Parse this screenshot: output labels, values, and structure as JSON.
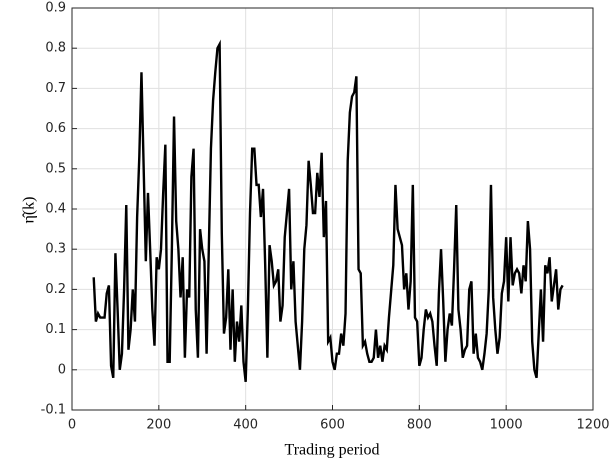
{
  "chart_data": {
    "type": "line",
    "xlabel": "Trading period",
    "ylabel": "η̂(k)",
    "xlim": [
      0,
      1200
    ],
    "xticks": [
      0,
      200,
      400,
      600,
      800,
      1000,
      1200
    ],
    "ylim": [
      -0.1,
      0.9
    ],
    "yticks": [
      -0.1,
      0,
      0.1,
      0.2,
      0.3,
      0.4,
      0.5,
      0.6,
      0.7,
      0.8,
      0.9
    ],
    "grid": true,
    "x": [
      50,
      55,
      60,
      65,
      75,
      80,
      85,
      90,
      95,
      100,
      105,
      110,
      115,
      120,
      125,
      130,
      135,
      140,
      145,
      150,
      155,
      160,
      170,
      175,
      180,
      185,
      190,
      195,
      200,
      205,
      210,
      215,
      220,
      225,
      230,
      235,
      240,
      245,
      250,
      255,
      260,
      265,
      270,
      275,
      280,
      285,
      290,
      295,
      300,
      305,
      310,
      320,
      325,
      330,
      335,
      340,
      345,
      350,
      355,
      360,
      365,
      370,
      375,
      380,
      385,
      390,
      395,
      400,
      405,
      410,
      415,
      420,
      425,
      430,
      435,
      440,
      445,
      450,
      455,
      460,
      465,
      470,
      475,
      480,
      485,
      490,
      495,
      500,
      505,
      510,
      515,
      520,
      525,
      530,
      535,
      540,
      545,
      550,
      555,
      560,
      565,
      570,
      575,
      580,
      585,
      590,
      595,
      600,
      605,
      610,
      615,
      620,
      625,
      630,
      635,
      640,
      645,
      650,
      655,
      660,
      665,
      670,
      675,
      680,
      685,
      690,
      695,
      700,
      705,
      710,
      715,
      720,
      725,
      730,
      740,
      745,
      750,
      755,
      760,
      765,
      770,
      775,
      780,
      785,
      790,
      795,
      800,
      805,
      810,
      815,
      820,
      825,
      830,
      835,
      840,
      845,
      850,
      855,
      860,
      865,
      870,
      875,
      880,
      885,
      890,
      895,
      900,
      905,
      910,
      915,
      920,
      925,
      930,
      935,
      940,
      945,
      950,
      955,
      960,
      965,
      970,
      975,
      980,
      985,
      990,
      995,
      1000,
      1005,
      1010,
      1015,
      1020,
      1025,
      1030,
      1035,
      1040,
      1045,
      1050,
      1055,
      1060,
      1065,
      1070,
      1075,
      1080,
      1085,
      1090,
      1095,
      1100,
      1105,
      1110,
      1115,
      1120,
      1125,
      1130
    ],
    "series": [
      {
        "color": "#000000",
        "values": [
          0.23,
          0.12,
          0.14,
          0.13,
          0.13,
          0.19,
          0.21,
          0.01,
          -0.02,
          0.29,
          0.15,
          0.0,
          0.04,
          0.2,
          0.41,
          0.05,
          0.1,
          0.2,
          0.12,
          0.38,
          0.53,
          0.74,
          0.27,
          0.44,
          0.3,
          0.15,
          0.06,
          0.28,
          0.25,
          0.3,
          0.44,
          0.56,
          0.02,
          0.02,
          0.3,
          0.63,
          0.37,
          0.3,
          0.18,
          0.28,
          0.03,
          0.2,
          0.18,
          0.48,
          0.55,
          0.15,
          0.03,
          0.35,
          0.3,
          0.27,
          0.04,
          0.55,
          0.67,
          0.74,
          0.8,
          0.81,
          0.34,
          0.09,
          0.13,
          0.25,
          0.05,
          0.2,
          0.02,
          0.12,
          0.07,
          0.16,
          0.02,
          -0.03,
          0.15,
          0.39,
          0.55,
          0.55,
          0.46,
          0.46,
          0.38,
          0.45,
          0.26,
          0.03,
          0.31,
          0.27,
          0.21,
          0.22,
          0.25,
          0.12,
          0.16,
          0.33,
          0.39,
          0.45,
          0.2,
          0.27,
          0.12,
          0.06,
          0.0,
          0.12,
          0.3,
          0.36,
          0.52,
          0.46,
          0.39,
          0.39,
          0.49,
          0.43,
          0.54,
          0.33,
          0.42,
          0.07,
          0.08,
          0.02,
          0.0,
          0.04,
          0.04,
          0.09,
          0.06,
          0.14,
          0.52,
          0.64,
          0.68,
          0.69,
          0.73,
          0.25,
          0.24,
          0.06,
          0.07,
          0.04,
          0.02,
          0.02,
          0.03,
          0.1,
          0.03,
          0.06,
          0.02,
          0.06,
          0.05,
          0.13,
          0.26,
          0.46,
          0.35,
          0.33,
          0.31,
          0.2,
          0.24,
          0.15,
          0.22,
          0.46,
          0.13,
          0.12,
          0.01,
          0.03,
          0.1,
          0.15,
          0.13,
          0.14,
          0.12,
          0.06,
          0.01,
          0.19,
          0.3,
          0.17,
          0.02,
          0.1,
          0.14,
          0.11,
          0.25,
          0.41,
          0.15,
          0.1,
          0.03,
          0.05,
          0.06,
          0.2,
          0.22,
          0.04,
          0.09,
          0.03,
          0.02,
          0.0,
          0.04,
          0.09,
          0.2,
          0.46,
          0.18,
          0.1,
          0.04,
          0.08,
          0.19,
          0.22,
          0.33,
          0.17,
          0.33,
          0.21,
          0.24,
          0.25,
          0.24,
          0.19,
          0.26,
          0.22,
          0.37,
          0.3,
          0.07,
          0.0,
          -0.02,
          0.09,
          0.2,
          0.07,
          0.26,
          0.24,
          0.28,
          0.17,
          0.21,
          0.25,
          0.15,
          0.2,
          0.21
        ]
      }
    ]
  }
}
